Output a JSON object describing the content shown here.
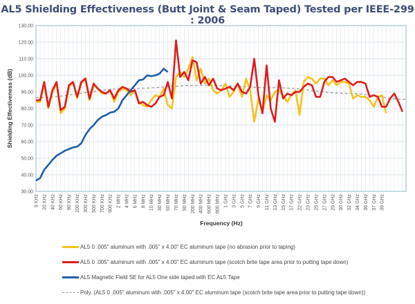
{
  "chart_data": {
    "type": "line",
    "title": "AL5 Shielding Effectiveness (Butt Joint & Seam Taped) Tested per IEEE-299 : 2006",
    "xlabel": "Frequency (Hz)",
    "ylabel": "Shielding Effectiveness (dB)",
    "ylim": [
      30,
      130
    ],
    "yticks": [
      "30.00",
      "40.00",
      "50.00",
      "60.00",
      "70.00",
      "80.00",
      "90.00",
      "100.00",
      "110.00",
      "120.00",
      "130.00"
    ],
    "x_tick_labels": [
      "9 KHz",
      "20 KHz",
      "40 KHz",
      "60 KHz",
      "80 KHz",
      "100 KHz",
      "300 KHz",
      "500 KHz",
      "700 KHz",
      "900 KHz",
      "2 MHz",
      "4 MHz",
      "6 MHz",
      "8 MHz",
      "10 MHz",
      "30 MHz",
      "50 MHz",
      "70 MHz",
      "90 MHz",
      "200 MHz",
      "400 MHz",
      "600 MHz",
      "800 MHz",
      "1 GHz",
      "3 GHz",
      "5 GHz",
      "7 GHz",
      "9 GHz",
      "11 GHz",
      "13 GHz",
      "15 GHz",
      "17 GHz",
      "22 GHz",
      "23 GHz",
      "25 GHz",
      "27 GHz",
      "29 GHz",
      "30 GHz",
      "32 GHz",
      "34 GHz",
      "36 GHz",
      "37 GHz",
      "39 GHz"
    ],
    "grid": true,
    "legend_position": "bottom",
    "series": [
      {
        "name": "AL5 0 .005\" aluminum with .005\" x 4.00\" EC aluminum tape (no abrasion prior to taping)",
        "color": "#f5c21b",
        "values": [
          84,
          84,
          95,
          80,
          90,
          95,
          77,
          80,
          93,
          96,
          86,
          95,
          98,
          85,
          94,
          92,
          89,
          89,
          91,
          84,
          90,
          92,
          91,
          88,
          91,
          84,
          82,
          81,
          85,
          88,
          87,
          92,
          82,
          80,
          99,
          102,
          99,
          104,
          111,
          97,
          104,
          95,
          98,
          91,
          89,
          91,
          95,
          87,
          90,
          95,
          87,
          98,
          91,
          72,
          86,
          78,
          88,
          85,
          90,
          91,
          88,
          84,
          88,
          91,
          76,
          96,
          99,
          98,
          95,
          98,
          98,
          94,
          97,
          94,
          96,
          96,
          95,
          86,
          88,
          87,
          87,
          85,
          81,
          87,
          88,
          77
        ]
      },
      {
        "name": "AL5 0 .005\" aluminum with .005\" x 4.00\" EC aluminum tape (scotch brite tape area prior to putting tape down)",
        "color": "#e01b1b",
        "values": [
          85,
          85,
          96,
          81,
          91,
          96,
          79,
          81,
          94,
          96,
          87,
          96,
          98,
          86,
          95,
          92,
          90,
          89,
          91,
          86,
          91,
          93,
          92,
          90,
          91,
          83,
          84,
          82,
          81,
          83,
          87,
          88,
          96,
          86,
          121,
          99,
          102,
          97,
          109,
          108,
          95,
          99,
          94,
          98,
          92,
          91,
          92,
          93,
          91,
          95,
          90,
          89,
          93,
          110,
          88,
          77,
          106,
          80,
          72,
          97,
          86,
          89,
          88,
          90,
          90,
          93,
          95,
          94,
          87,
          87,
          96,
          99,
          99,
          96,
          97,
          98,
          96,
          94,
          96,
          96,
          95,
          87,
          88,
          87,
          81,
          81,
          86,
          89,
          84,
          78
        ]
      },
      {
        "name": "AL5 Magnetic Field SE for AL5 One side taped with EC AL5 Tape",
        "color": "#1f5ea8",
        "values": [
          36.5,
          38,
          43,
          46,
          49,
          51.5,
          53,
          54.5,
          55.5,
          56.5,
          57,
          59,
          64,
          67.5,
          70,
          73,
          75,
          76,
          77.5,
          78,
          80,
          85,
          88,
          91,
          94,
          97,
          97.5,
          100,
          99.5,
          100,
          101,
          104,
          102
        ]
      },
      {
        "name": "Poly. (AL5 0 .005\" aluminum with .005\" x 4.00\" EC aluminum tape (scotch brite tape area prior to putting tape down))",
        "color": "#9a9a9a",
        "style": "dashed",
        "poly_points": [
          [
            0,
            86.5
          ],
          [
            0.25,
            92
          ],
          [
            0.45,
            94
          ],
          [
            0.65,
            92.5
          ],
          [
            0.85,
            89
          ],
          [
            1.0,
            85.5
          ]
        ]
      }
    ]
  }
}
